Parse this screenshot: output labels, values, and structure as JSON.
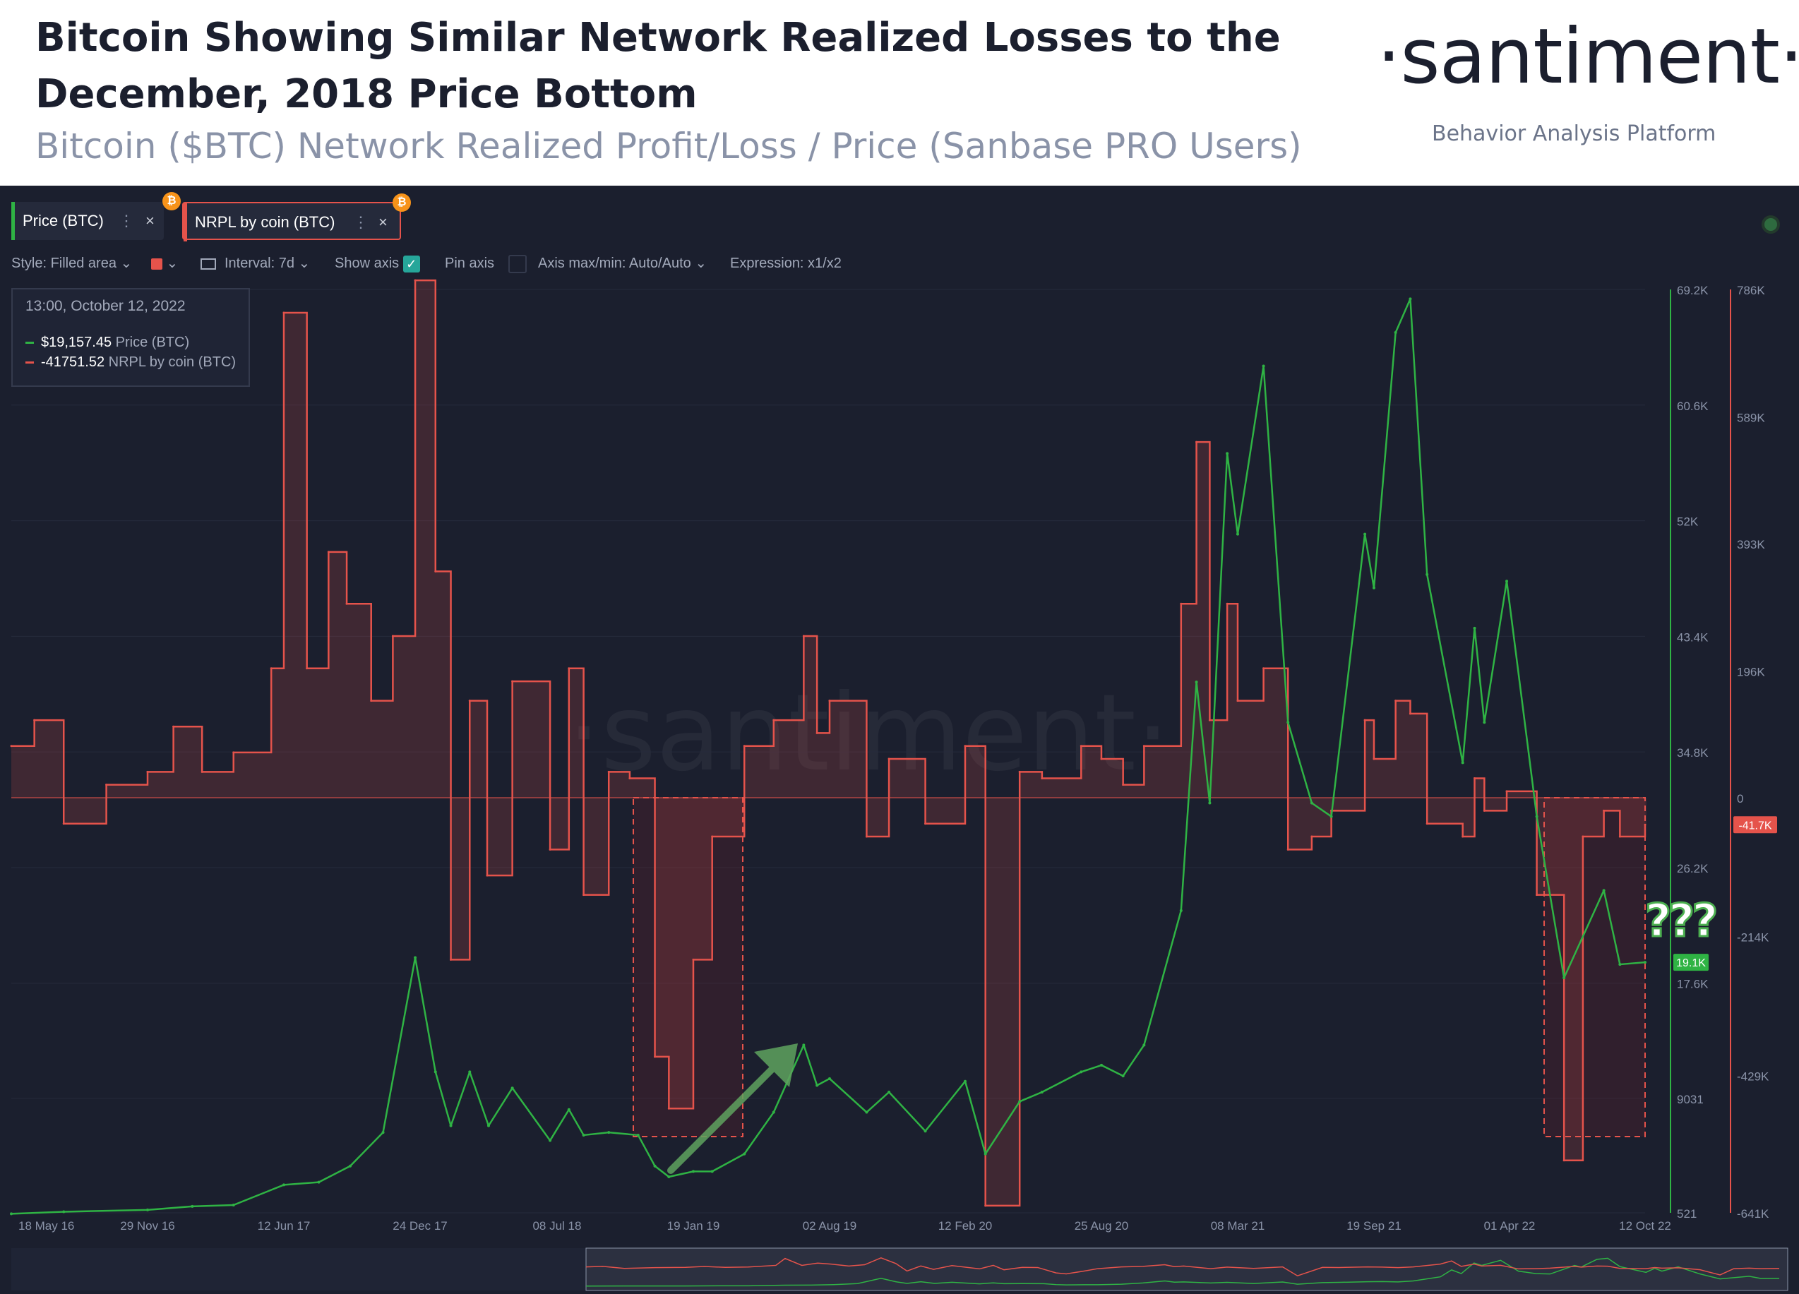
{
  "header": {
    "title": "Bitcoin Showing Similar Network Realized Losses to the December, 2018 Price Bottom",
    "subtitle": "Bitcoin ($BTC) Network Realized Profit/Loss / Price (Sanbase PRO Users)",
    "logo": "·santiment·",
    "tagline": "Behavior Analysis Platform"
  },
  "tabs": [
    {
      "label": "Price (BTC)",
      "color": "#2fb344",
      "icon": "bitcoin-icon"
    },
    {
      "label": "NRPL by coin (BTC)",
      "color": "#e5534b",
      "icon": "bitcoin-icon"
    }
  ],
  "toolbar": {
    "style": "Style: Filled area",
    "interval": "Interval: 7d",
    "show_axis": "Show axis",
    "pin_axis": "Pin axis",
    "axis_minmax": "Axis max/min: Auto/Auto",
    "expression": "Expression: x1/x2"
  },
  "tooltip": {
    "date": "13:00, October 12, 2022",
    "price_value": "$19,157.45",
    "price_label": "Price (BTC)",
    "nrpl_value": "-41751.52",
    "nrpl_label": "NRPL by coin (BTC)"
  },
  "annotation": "???",
  "colors": {
    "price": "#2fb344",
    "nrpl": "#e5534b",
    "background": "#1b1f2e",
    "arrow": "#5fa35f"
  },
  "chart_data": {
    "type": "line",
    "x_ticks": [
      "18 May 16",
      "29 Nov 16",
      "12 Jun 17",
      "24 Dec 17",
      "08 Jul 18",
      "19 Jan 19",
      "02 Aug 19",
      "12 Feb 20",
      "25 Aug 20",
      "08 Mar 21",
      "19 Sep 21",
      "01 Apr 22",
      "12 Oct 22"
    ],
    "price_axis_ticks": [
      "69.2K",
      "60.6K",
      "52K",
      "43.4K",
      "34.8K",
      "26.2K",
      "17.6K",
      "9031",
      "521"
    ],
    "nrpl_axis_ticks": [
      "786K",
      "589K",
      "393K",
      "196K",
      "0",
      "-214K",
      "-429K",
      "-641K"
    ],
    "price_badge": "19.1K",
    "nrpl_badge": "-41.7K",
    "watermark": "·santiment·",
    "series": [
      {
        "name": "Price (BTC)",
        "axis": "right-inner",
        "points": [
          [
            "2016-05-18",
            450
          ],
          [
            "2016-08-01",
            600
          ],
          [
            "2016-11-29",
            740
          ],
          [
            "2017-02-01",
            1000
          ],
          [
            "2017-04-01",
            1100
          ],
          [
            "2017-06-12",
            2600
          ],
          [
            "2017-08-01",
            2800
          ],
          [
            "2017-09-15",
            4000
          ],
          [
            "2017-11-01",
            6500
          ],
          [
            "2017-12-17",
            19500
          ],
          [
            "2018-01-15",
            11000
          ],
          [
            "2018-02-06",
            7000
          ],
          [
            "2018-03-05",
            11000
          ],
          [
            "2018-04-01",
            7000
          ],
          [
            "2018-05-05",
            9800
          ],
          [
            "2018-06-28",
            5900
          ],
          [
            "2018-07-25",
            8200
          ],
          [
            "2018-08-15",
            6300
          ],
          [
            "2018-09-20",
            6500
          ],
          [
            "2018-11-01",
            6300
          ],
          [
            "2018-11-25",
            4000
          ],
          [
            "2018-12-15",
            3200
          ],
          [
            "2019-01-19",
            3600
          ],
          [
            "2019-02-15",
            3600
          ],
          [
            "2019-04-02",
            4900
          ],
          [
            "2019-05-14",
            8000
          ],
          [
            "2019-06-26",
            13000
          ],
          [
            "2019-07-15",
            10000
          ],
          [
            "2019-08-02",
            10500
          ],
          [
            "2019-09-24",
            8000
          ],
          [
            "2019-10-26",
            9500
          ],
          [
            "2019-12-17",
            6600
          ],
          [
            "2020-02-12",
            10300
          ],
          [
            "2020-03-12",
            4900
          ],
          [
            "2020-04-30",
            8800
          ],
          [
            "2020-06-01",
            9500
          ],
          [
            "2020-07-27",
            11000
          ],
          [
            "2020-08-25",
            11500
          ],
          [
            "2020-09-25",
            10700
          ],
          [
            "2020-10-25",
            13000
          ],
          [
            "2020-12-17",
            23000
          ],
          [
            "2021-01-08",
            40000
          ],
          [
            "2021-01-27",
            31000
          ],
          [
            "2021-02-21",
            57000
          ],
          [
            "2021-03-08",
            51000
          ],
          [
            "2021-04-14",
            63500
          ],
          [
            "2021-05-19",
            37000
          ],
          [
            "2021-06-22",
            31000
          ],
          [
            "2021-07-20",
            30000
          ],
          [
            "2021-09-06",
            51000
          ],
          [
            "2021-09-19",
            47000
          ],
          [
            "2021-10-20",
            66000
          ],
          [
            "2021-11-10",
            68500
          ],
          [
            "2021-12-04",
            48000
          ],
          [
            "2022-01-24",
            34000
          ],
          [
            "2022-02-10",
            44000
          ],
          [
            "2022-02-24",
            37000
          ],
          [
            "2022-03-28",
            47500
          ],
          [
            "2022-05-10",
            30000
          ],
          [
            "2022-06-18",
            18000
          ],
          [
            "2022-08-14",
            24500
          ],
          [
            "2022-09-06",
            19000
          ],
          [
            "2022-10-12",
            19157
          ]
        ]
      },
      {
        "name": "NRPL by coin (BTC)",
        "axis": "right-outer",
        "points": [
          [
            "2016-05-18",
            80000
          ],
          [
            "2016-06-20",
            120000
          ],
          [
            "2016-08-01",
            -40000
          ],
          [
            "2016-10-01",
            20000
          ],
          [
            "2016-11-29",
            40000
          ],
          [
            "2017-01-05",
            110000
          ],
          [
            "2017-02-15",
            40000
          ],
          [
            "2017-04-01",
            70000
          ],
          [
            "2017-05-25",
            200000
          ],
          [
            "2017-06-12",
            750000
          ],
          [
            "2017-07-15",
            200000
          ],
          [
            "2017-08-15",
            380000
          ],
          [
            "2017-09-10",
            300000
          ],
          [
            "2017-10-15",
            150000
          ],
          [
            "2017-11-15",
            250000
          ],
          [
            "2017-12-17",
            800000
          ],
          [
            "2018-01-15",
            350000
          ],
          [
            "2018-02-06",
            -250000
          ],
          [
            "2018-03-05",
            150000
          ],
          [
            "2018-03-30",
            -120000
          ],
          [
            "2018-05-05",
            180000
          ],
          [
            "2018-06-28",
            -80000
          ],
          [
            "2018-07-25",
            200000
          ],
          [
            "2018-08-15",
            -150000
          ],
          [
            "2018-09-20",
            40000
          ],
          [
            "2018-10-20",
            30000
          ],
          [
            "2018-11-25",
            -400000
          ],
          [
            "2018-12-15",
            -480000
          ],
          [
            "2019-01-19",
            -250000
          ],
          [
            "2019-02-15",
            -60000
          ],
          [
            "2019-04-02",
            80000
          ],
          [
            "2019-05-14",
            120000
          ],
          [
            "2019-06-26",
            250000
          ],
          [
            "2019-07-15",
            100000
          ],
          [
            "2019-08-02",
            150000
          ],
          [
            "2019-09-24",
            -60000
          ],
          [
            "2019-10-26",
            60000
          ],
          [
            "2019-12-17",
            -40000
          ],
          [
            "2020-02-12",
            80000
          ],
          [
            "2020-03-12",
            -630000
          ],
          [
            "2020-04-30",
            40000
          ],
          [
            "2020-06-01",
            30000
          ],
          [
            "2020-07-27",
            80000
          ],
          [
            "2020-08-25",
            60000
          ],
          [
            "2020-09-25",
            20000
          ],
          [
            "2020-10-25",
            80000
          ],
          [
            "2020-12-17",
            300000
          ],
          [
            "2021-01-08",
            550000
          ],
          [
            "2021-01-27",
            120000
          ],
          [
            "2021-02-21",
            300000
          ],
          [
            "2021-03-08",
            150000
          ],
          [
            "2021-04-14",
            200000
          ],
          [
            "2021-05-19",
            -80000
          ],
          [
            "2021-06-22",
            -60000
          ],
          [
            "2021-07-20",
            -20000
          ],
          [
            "2021-09-06",
            120000
          ],
          [
            "2021-09-19",
            60000
          ],
          [
            "2021-10-20",
            150000
          ],
          [
            "2021-11-10",
            130000
          ],
          [
            "2021-12-04",
            -40000
          ],
          [
            "2022-01-24",
            -60000
          ],
          [
            "2022-02-10",
            30000
          ],
          [
            "2022-02-24",
            -20000
          ],
          [
            "2022-03-28",
            10000
          ],
          [
            "2022-05-10",
            -150000
          ],
          [
            "2022-06-18",
            -560000
          ],
          [
            "2022-07-15",
            -60000
          ],
          [
            "2022-08-14",
            -20000
          ],
          [
            "2022-09-06",
            -60000
          ],
          [
            "2022-10-12",
            -41751
          ]
        ]
      }
    ]
  }
}
